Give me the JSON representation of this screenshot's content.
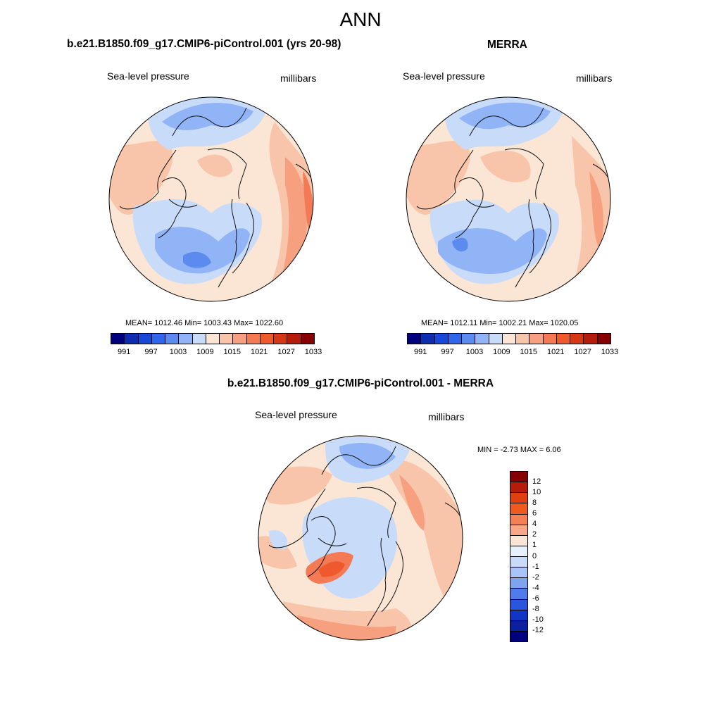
{
  "main_title": "ANN",
  "panels": [
    {
      "title": "b.e21.B1850.f09_g17.CMIP6-piControl.001 (yrs 20-98)",
      "left_label": "Sea-level pressure",
      "right_label": "millibars",
      "stats": "MEAN= 1012.46  Min= 1003.43  Max= 1022.60"
    },
    {
      "title": "MERRA",
      "left_label": "Sea-level pressure",
      "right_label": "millibars",
      "stats": "MEAN= 1012.11  Min= 1002.21  Max= 1020.05"
    },
    {
      "title": "b.e21.B1850.f09_g17.CMIP6-piControl.001 - MERRA",
      "left_label": "Sea-level pressure",
      "right_label": "millibars",
      "stats": "MIN =  -2.73 MAX =   6.06"
    }
  ],
  "colorbar_abs": {
    "colors": [
      "#00007f",
      "#0c2dae",
      "#1848d8",
      "#2f66ea",
      "#5c8bf0",
      "#90b4f5",
      "#c8dcfa",
      "#fbe6d6",
      "#f9c5aa",
      "#f7a080",
      "#f47a55",
      "#ee5a2d",
      "#d63716",
      "#b51c0c",
      "#850000"
    ],
    "labels": [
      "991",
      "997",
      "1003",
      "1009",
      "1015",
      "1021",
      "1027",
      "1033"
    ]
  },
  "colorbar_diff": {
    "colors_top_to_bottom": [
      "#850000",
      "#b51c0c",
      "#e0400f",
      "#f05a1e",
      "#f48055",
      "#f8a888",
      "#fbe6d6",
      "#e8f0fc",
      "#c8dcfa",
      "#a9c4f6",
      "#7ea4f0",
      "#4f7cea",
      "#2a55de",
      "#1236c4",
      "#0a20a0",
      "#00007f"
    ],
    "labels": [
      "12",
      "10",
      "8",
      "6",
      "4",
      "2",
      "1",
      "0",
      "-1",
      "-2",
      "-4",
      "-6",
      "-8",
      "-10",
      "-12"
    ]
  },
  "map_colors": {
    "ocean_light": "#fbe6d6",
    "peach": "#f9c5aa",
    "orange": "#f7a080",
    "deep_orange": "#f47a55",
    "blue_light": "#c8dcfa",
    "blue": "#90b4f5",
    "blue_dark": "#5c8bf0",
    "white_blue": "#e8f0fc"
  }
}
